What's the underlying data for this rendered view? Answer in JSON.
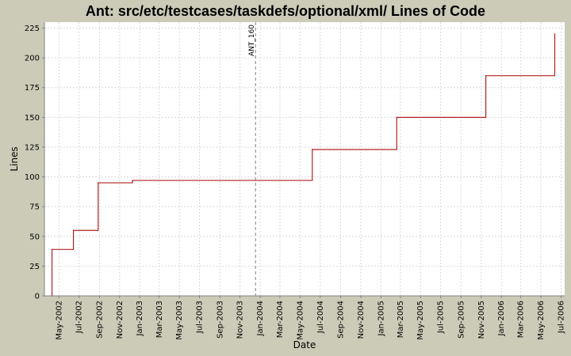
{
  "chart_data": {
    "type": "line",
    "step": true,
    "title": "Ant: src/etc/testcases/taskdefs/optional/xml/ Lines of Code",
    "xlabel": "Date",
    "ylabel": "Lines",
    "ylim": [
      0,
      230
    ],
    "xlim": [
      "2002-03-18",
      "2006-07-12"
    ],
    "grid": true,
    "y_ticks": [
      0,
      25,
      50,
      75,
      100,
      125,
      150,
      175,
      200,
      225
    ],
    "x_ticks": [
      {
        "date": "2002-05-01",
        "label": "May-2002"
      },
      {
        "date": "2002-07-01",
        "label": "Jul-2002"
      },
      {
        "date": "2002-09-01",
        "label": "Sep-2002"
      },
      {
        "date": "2002-11-01",
        "label": "Nov-2002"
      },
      {
        "date": "2003-01-01",
        "label": "Jan-2003"
      },
      {
        "date": "2003-03-01",
        "label": "Mar-2003"
      },
      {
        "date": "2003-05-01",
        "label": "May-2003"
      },
      {
        "date": "2003-07-01",
        "label": "Jul-2003"
      },
      {
        "date": "2003-09-01",
        "label": "Sep-2003"
      },
      {
        "date": "2003-11-01",
        "label": "Nov-2003"
      },
      {
        "date": "2004-01-01",
        "label": "Jan-2004"
      },
      {
        "date": "2004-03-01",
        "label": "Mar-2004"
      },
      {
        "date": "2004-05-01",
        "label": "May-2004"
      },
      {
        "date": "2004-07-01",
        "label": "Jul-2004"
      },
      {
        "date": "2004-09-01",
        "label": "Sep-2004"
      },
      {
        "date": "2004-11-01",
        "label": "Nov-2004"
      },
      {
        "date": "2005-01-01",
        "label": "Jan-2005"
      },
      {
        "date": "2005-03-01",
        "label": "Mar-2005"
      },
      {
        "date": "2005-05-01",
        "label": "May-2005"
      },
      {
        "date": "2005-07-01",
        "label": "Jul-2005"
      },
      {
        "date": "2005-09-01",
        "label": "Sep-2005"
      },
      {
        "date": "2005-11-01",
        "label": "Nov-2005"
      },
      {
        "date": "2006-01-01",
        "label": "Jan-2006"
      },
      {
        "date": "2006-03-01",
        "label": "Mar-2006"
      },
      {
        "date": "2006-05-01",
        "label": "May-2006"
      },
      {
        "date": "2006-07-01",
        "label": "Jul-2006"
      }
    ],
    "series": [
      {
        "color": "#b22222",
        "points": [
          {
            "x": "2002-04-10",
            "y": 0
          },
          {
            "x": "2002-04-10",
            "y": 39
          },
          {
            "x": "2002-06-14",
            "y": 55
          },
          {
            "x": "2002-08-28",
            "y": 95
          },
          {
            "x": "2002-12-10",
            "y": 97
          },
          {
            "x": "2004-06-07",
            "y": 123
          },
          {
            "x": "2005-02-18",
            "y": 150
          },
          {
            "x": "2005-11-15",
            "y": 185
          },
          {
            "x": "2006-06-12",
            "y": 220
          }
        ]
      }
    ],
    "markers": [
      {
        "date": "2003-12-18",
        "label": "ANT_160"
      }
    ],
    "colors": {
      "background": "#cccbb8",
      "plot_background": "#ffffff",
      "grid": "#d9d9d9",
      "marker": "#808080"
    }
  }
}
